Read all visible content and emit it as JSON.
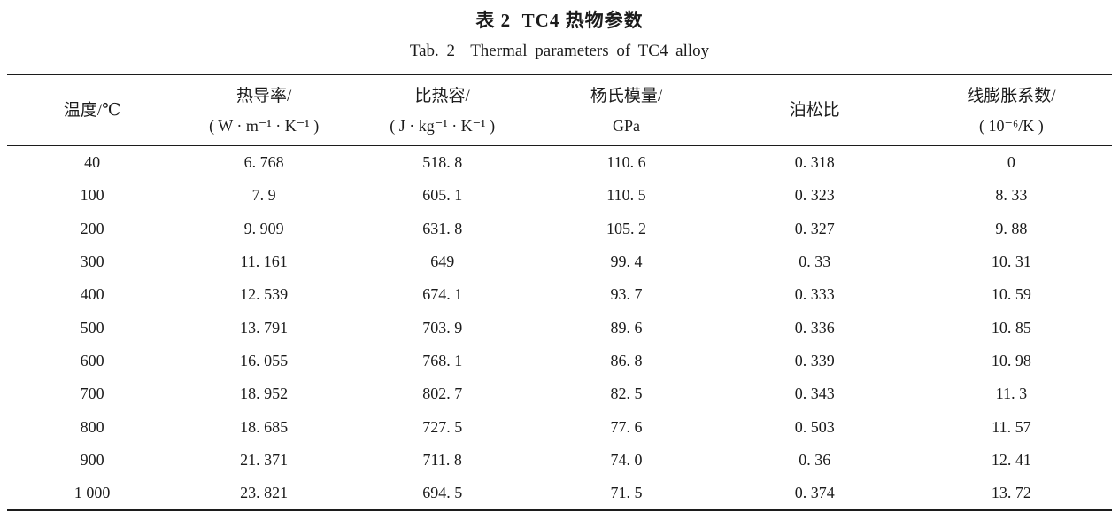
{
  "page": {
    "background_color": "#ffffff",
    "ink_color": "#1b1b1b"
  },
  "caption": {
    "zh": "表 2  TC4 热物参数",
    "en": "Tab. 2  Thermal parameters of TC4 alloy"
  },
  "table": {
    "columns": [
      {
        "title": "温度/℃",
        "unit": ""
      },
      {
        "title": "热导率/",
        "unit": "( W · m⁻¹ · K⁻¹ )"
      },
      {
        "title": "比热容/",
        "unit": "( J · kg⁻¹ · K⁻¹ )"
      },
      {
        "title": "杨氏模量/",
        "unit": "GPa"
      },
      {
        "title": "泊松比",
        "unit": ""
      },
      {
        "title": "线膨胀系数/",
        "unit": "( 10⁻⁶/K )"
      }
    ],
    "rows": [
      [
        "40",
        "6. 768",
        "518. 8",
        "110. 6",
        "0. 318",
        "0"
      ],
      [
        "100",
        "7. 9",
        "605. 1",
        "110. 5",
        "0. 323",
        "8. 33"
      ],
      [
        "200",
        "9. 909",
        "631. 8",
        "105. 2",
        "0. 327",
        "9. 88"
      ],
      [
        "300",
        "11. 161",
        "649",
        "99. 4",
        "0. 33",
        "10. 31"
      ],
      [
        "400",
        "12. 539",
        "674. 1",
        "93. 7",
        "0. 333",
        "10. 59"
      ],
      [
        "500",
        "13. 791",
        "703. 9",
        "89. 6",
        "0. 336",
        "10. 85"
      ],
      [
        "600",
        "16. 055",
        "768. 1",
        "86. 8",
        "0. 339",
        "10. 98"
      ],
      [
        "700",
        "18. 952",
        "802. 7",
        "82. 5",
        "0. 343",
        "11. 3"
      ],
      [
        "800",
        "18. 685",
        "727. 5",
        "77. 6",
        "0. 503",
        "11. 57"
      ],
      [
        "900",
        "21. 371",
        "711. 8",
        "74. 0",
        "0. 36",
        "12. 41"
      ],
      [
        "1 000",
        "23. 821",
        "694. 5",
        "71. 5",
        "0. 374",
        "13. 72"
      ]
    ]
  }
}
